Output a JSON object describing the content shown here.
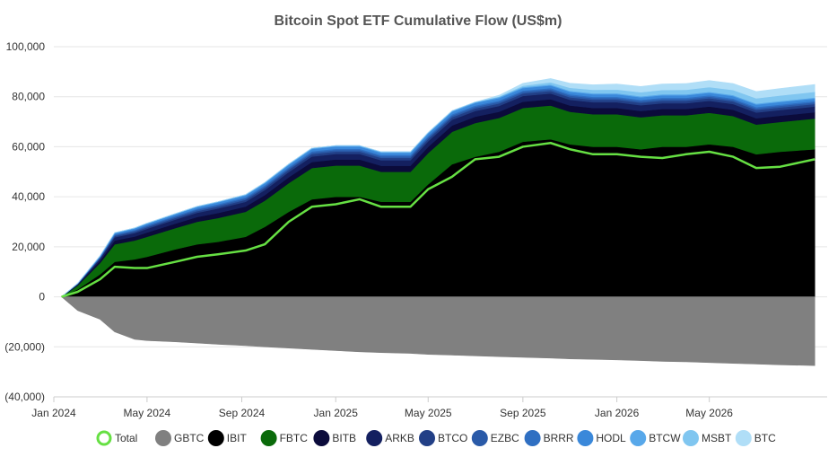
{
  "chart_data": {
    "type": "area",
    "title": "Bitcoin Spot ETF Cumulative Flow (US$m)",
    "ylim": [
      -40000,
      100000
    ],
    "ytick_values": [
      -40000,
      -20000,
      0,
      20000,
      40000,
      60000,
      80000,
      100000
    ],
    "ytick_labels": [
      "(40,000)",
      "(20,000)",
      "0",
      "20,000",
      "40,000",
      "60,000",
      "80,000",
      "100,000"
    ],
    "x_range": [
      "2024-01-11",
      "2026-09-15"
    ],
    "xticks": [
      {
        "date": "2024-01-01",
        "label": "Jan 2024"
      },
      {
        "date": "2024-05-01",
        "label": "May 2024"
      },
      {
        "date": "2024-09-01",
        "label": "Sep 2024"
      },
      {
        "date": "2025-01-01",
        "label": "Jan 2025"
      },
      {
        "date": "2025-05-01",
        "label": "May 2025"
      },
      {
        "date": "2025-09-01",
        "label": "Sep 2025"
      },
      {
        "date": "2026-01-01",
        "label": "Jan 2026"
      },
      {
        "date": "2026-05-01",
        "label": "May 2026"
      }
    ],
    "grid": true,
    "legend_position": "bottom",
    "dates": [
      "2024-01-11",
      "2024-02-01",
      "2024-03-01",
      "2024-03-20",
      "2024-04-15",
      "2024-05-01",
      "2024-06-07",
      "2024-07-05",
      "2024-08-01",
      "2024-09-06",
      "2024-10-01",
      "2024-11-01",
      "2024-12-01",
      "2025-01-01",
      "2025-02-01",
      "2025-03-01",
      "2025-04-08",
      "2025-05-01",
      "2025-06-01",
      "2025-07-01",
      "2025-08-01",
      "2025-09-01",
      "2025-10-07",
      "2025-11-01",
      "2025-12-01",
      "2026-01-01",
      "2026-02-01",
      "2026-03-01",
      "2026-04-01",
      "2026-05-01",
      "2026-06-01",
      "2026-07-01",
      "2026-08-01",
      "2026-09-15"
    ],
    "total_line": {
      "name": "Total",
      "color": "#66e043",
      "values": [
        0,
        2000,
        7000,
        12000,
        11500,
        11500,
        14000,
        16000,
        17000,
        18500,
        21000,
        30000,
        36000,
        37000,
        39000,
        36000,
        36000,
        43000,
        48000,
        55000,
        56000,
        60000,
        61500,
        59000,
        57000,
        57000,
        56000,
        55500,
        57000,
        58000,
        56000,
        51500,
        52000,
        55000
      ]
    },
    "series": [
      {
        "name": "IBIT",
        "color": "#000000",
        "values": [
          0,
          3000,
          9000,
          14000,
          15000,
          16000,
          19000,
          21000,
          22000,
          24000,
          28000,
          34000,
          39000,
          40000,
          40000,
          38000,
          38000,
          45000,
          53000,
          56000,
          58000,
          62000,
          63000,
          61000,
          60000,
          60000,
          59000,
          60000,
          60000,
          61000,
          60000,
          57000,
          58000,
          59000
        ]
      },
      {
        "name": "FBTC",
        "color": "#0a6a0a",
        "values": [
          0,
          1500,
          4500,
          7000,
          7500,
          8000,
          8500,
          9000,
          9500,
          10000,
          10500,
          11500,
          12500,
          12500,
          12500,
          12000,
          12000,
          12500,
          13000,
          13500,
          13500,
          13500,
          13500,
          13000,
          13000,
          13000,
          12800,
          12600,
          12600,
          12600,
          12300,
          11900,
          11900,
          12300
        ]
      },
      {
        "name": "BITB",
        "color": "#0b0b3b",
        "values": [
          0,
          300,
          900,
          1500,
          1600,
          1700,
          1800,
          1900,
          2000,
          2100,
          2200,
          2300,
          2400,
          2400,
          2400,
          2400,
          2400,
          2450,
          2500,
          2500,
          2500,
          2500,
          2500,
          2500,
          2500,
          2500,
          2500,
          2500,
          2500,
          2500,
          2500,
          2500,
          2500,
          2500
        ]
      },
      {
        "name": "ARKB",
        "color": "#142060",
        "values": [
          0,
          250,
          800,
          1300,
          1400,
          1500,
          1600,
          1700,
          1800,
          1900,
          2000,
          2100,
          2200,
          2200,
          2200,
          2200,
          2200,
          2250,
          2300,
          2300,
          2300,
          2300,
          2300,
          2300,
          2300,
          2300,
          2300,
          2300,
          2300,
          2300,
          2300,
          2300,
          2300,
          2300
        ]
      },
      {
        "name": "BTCO",
        "color": "#223f86",
        "values": [
          0,
          100,
          300,
          500,
          550,
          600,
          650,
          700,
          750,
          800,
          850,
          900,
          950,
          950,
          950,
          950,
          950,
          980,
          1000,
          1000,
          1000,
          1000,
          1000,
          1000,
          1000,
          1000,
          1000,
          1000,
          1000,
          1000,
          1000,
          1000,
          1000,
          1000
        ]
      },
      {
        "name": "EZBC",
        "color": "#2a5aa8",
        "values": [
          0,
          80,
          250,
          400,
          450,
          500,
          520,
          540,
          560,
          580,
          600,
          620,
          640,
          640,
          640,
          640,
          640,
          650,
          660,
          660,
          660,
          660,
          660,
          660,
          660,
          660,
          660,
          660,
          660,
          660,
          660,
          660,
          660,
          660
        ]
      },
      {
        "name": "BRRR",
        "color": "#2f6fc2",
        "values": [
          0,
          60,
          200,
          300,
          330,
          360,
          380,
          400,
          420,
          440,
          460,
          480,
          500,
          500,
          500,
          500,
          500,
          510,
          520,
          520,
          520,
          520,
          520,
          520,
          520,
          520,
          520,
          520,
          520,
          520,
          520,
          520,
          520,
          520
        ]
      },
      {
        "name": "HODL",
        "color": "#3a88da",
        "values": [
          0,
          80,
          300,
          450,
          500,
          550,
          600,
          650,
          700,
          750,
          800,
          850,
          900,
          900,
          900,
          900,
          900,
          950,
          1000,
          1000,
          1000,
          1000,
          1000,
          1000,
          1000,
          1000,
          1000,
          1000,
          1000,
          1000,
          1000,
          1000,
          1000,
          1000
        ]
      },
      {
        "name": "BTCW",
        "color": "#58a8ea",
        "values": [
          0,
          40,
          120,
          200,
          220,
          240,
          260,
          280,
          300,
          320,
          340,
          360,
          380,
          380,
          380,
          380,
          380,
          390,
          400,
          400,
          400,
          400,
          400,
          400,
          400,
          400,
          400,
          400,
          400,
          400,
          400,
          400,
          400,
          400
        ]
      },
      {
        "name": "MSBT",
        "color": "#80c6f0",
        "values": [
          0,
          0,
          0,
          0,
          0,
          0,
          0,
          0,
          0,
          0,
          0,
          0,
          0,
          0,
          0,
          0,
          0,
          0,
          0,
          0,
          200,
          500,
          900,
          1200,
          1400,
          1500,
          1600,
          1700,
          1800,
          1900,
          2000,
          2100,
          2200,
          2300
        ]
      },
      {
        "name": "BTC",
        "color": "#b0def7",
        "values": [
          0,
          0,
          0,
          0,
          0,
          0,
          0,
          0,
          0,
          0,
          0,
          0,
          0,
          0,
          0,
          0,
          0,
          0,
          0,
          0,
          500,
          1000,
          1500,
          1800,
          2000,
          2200,
          2300,
          2400,
          2500,
          2600,
          2600,
          2700,
          2800,
          2900
        ]
      }
    ],
    "negative_series": [
      {
        "name": "GBTC",
        "color": "#808080",
        "values": [
          0,
          -5500,
          -9000,
          -14000,
          -17000,
          -17500,
          -18000,
          -18500,
          -19000,
          -19500,
          -20000,
          -20500,
          -21000,
          -21500,
          -22000,
          -22300,
          -22600,
          -23000,
          -23300,
          -23600,
          -23900,
          -24200,
          -24500,
          -24800,
          -25000,
          -25200,
          -25500,
          -25800,
          -26000,
          -26300,
          -26600,
          -26900,
          -27200,
          -27500
        ]
      }
    ],
    "legend": [
      {
        "name": "Total",
        "color": "#66e043",
        "style": "ring"
      },
      {
        "name": "GBTC",
        "color": "#808080",
        "style": "dot"
      },
      {
        "name": "IBIT",
        "color": "#000000",
        "style": "dot"
      },
      {
        "name": "FBTC",
        "color": "#0a6a0a",
        "style": "dot"
      },
      {
        "name": "BITB",
        "color": "#0b0b3b",
        "style": "dot"
      },
      {
        "name": "ARKB",
        "color": "#142060",
        "style": "dot"
      },
      {
        "name": "BTCO",
        "color": "#223f86",
        "style": "dot"
      },
      {
        "name": "EZBC",
        "color": "#2a5aa8",
        "style": "dot"
      },
      {
        "name": "BRRR",
        "color": "#2f6fc2",
        "style": "dot"
      },
      {
        "name": "HODL",
        "color": "#3a88da",
        "style": "dot"
      },
      {
        "name": "BTCW",
        "color": "#58a8ea",
        "style": "dot"
      },
      {
        "name": "MSBT",
        "color": "#80c6f0",
        "style": "dot"
      },
      {
        "name": "BTC",
        "color": "#b0def7",
        "style": "dot"
      }
    ]
  }
}
